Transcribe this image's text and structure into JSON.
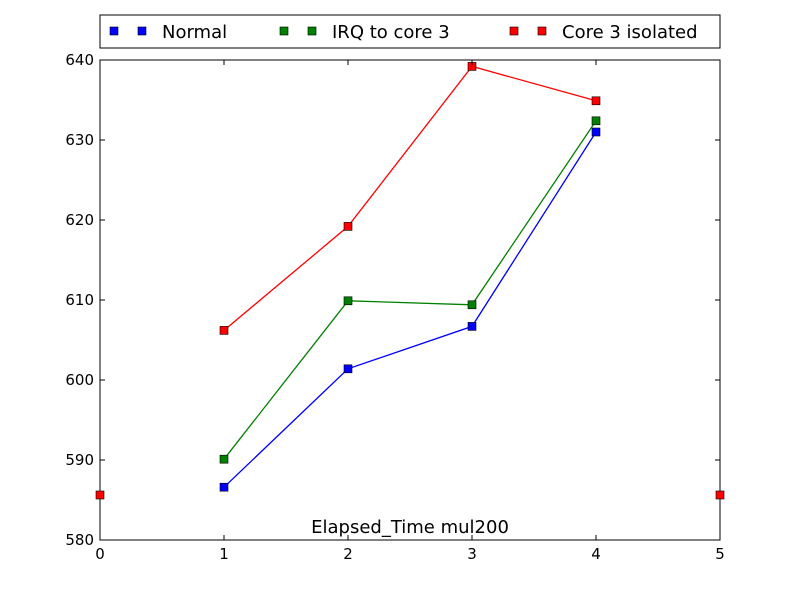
{
  "chart_data": {
    "type": "line",
    "title": "Elapsed_Time mul200",
    "xlabel": "",
    "ylabel": "",
    "xlim": [
      0,
      5
    ],
    "ylim": [
      580,
      640
    ],
    "x_ticks": [
      0,
      1,
      2,
      3,
      4,
      5
    ],
    "y_ticks": [
      580,
      590,
      600,
      610,
      620,
      630,
      640
    ],
    "grid": false,
    "legend_position": "top",
    "x": [
      1,
      2,
      3,
      4
    ],
    "series": [
      {
        "name": "Normal",
        "color": "#0000ff",
        "values": [
          586.6,
          601.4,
          606.7,
          631.0
        ]
      },
      {
        "name": "IRQ to core 3",
        "color": "#008000",
        "values": [
          590.1,
          609.9,
          609.4,
          632.4
        ]
      },
      {
        "name": "Core 3 isolated",
        "color": "#ff0000",
        "values": [
          606.2,
          619.2,
          639.2,
          634.9
        ]
      }
    ]
  }
}
